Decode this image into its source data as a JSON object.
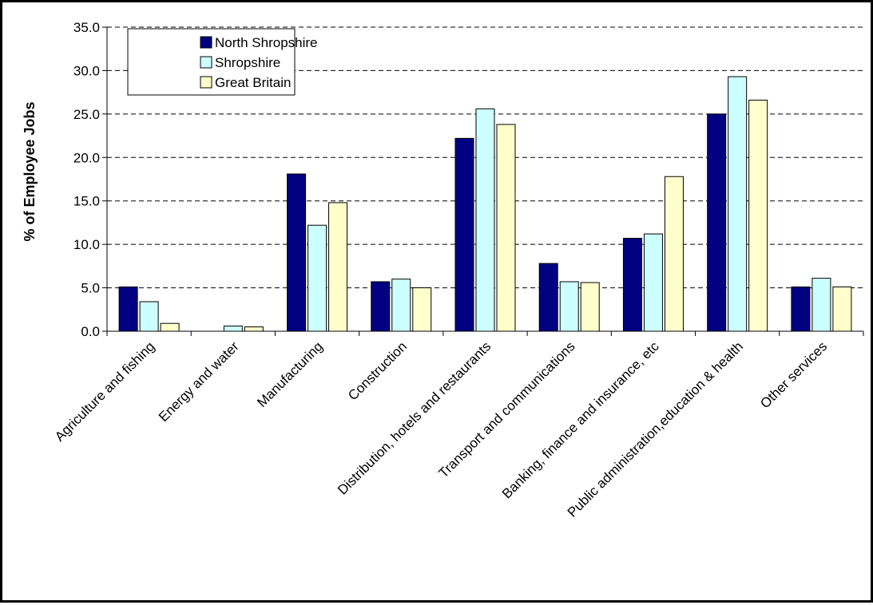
{
  "chart_data": {
    "type": "bar",
    "title": "",
    "xlabel": "",
    "ylabel": "% of Employee Jobs",
    "ylim": [
      0,
      35
    ],
    "yticks": [
      "0.0",
      "5.0",
      "10.0",
      "15.0",
      "20.0",
      "25.0",
      "30.0",
      "35.0"
    ],
    "grid": "horizontal dashed",
    "legend_position": "top-left",
    "categories": [
      "Agriculture and fishing",
      "Energy and water",
      "Manufacturing",
      "Construction",
      "Distribution, hotels and restaurants",
      "Transport and communications",
      "Banking, finance and insurance, etc",
      "Public administration,education & health",
      "Other services"
    ],
    "series": [
      {
        "name": "North Shropshire",
        "color": "#000080",
        "values": [
          5.1,
          0.0,
          18.1,
          5.7,
          22.2,
          7.8,
          10.7,
          25.0,
          5.1
        ]
      },
      {
        "name": "Shropshire",
        "color": "#ccffff",
        "values": [
          3.4,
          0.6,
          12.2,
          6.0,
          25.6,
          5.7,
          11.2,
          29.3,
          6.1
        ]
      },
      {
        "name": "Great Britain",
        "color": "#ffffcc",
        "values": [
          0.9,
          0.5,
          14.8,
          5.0,
          23.8,
          5.6,
          17.8,
          26.6,
          5.1
        ]
      }
    ]
  }
}
